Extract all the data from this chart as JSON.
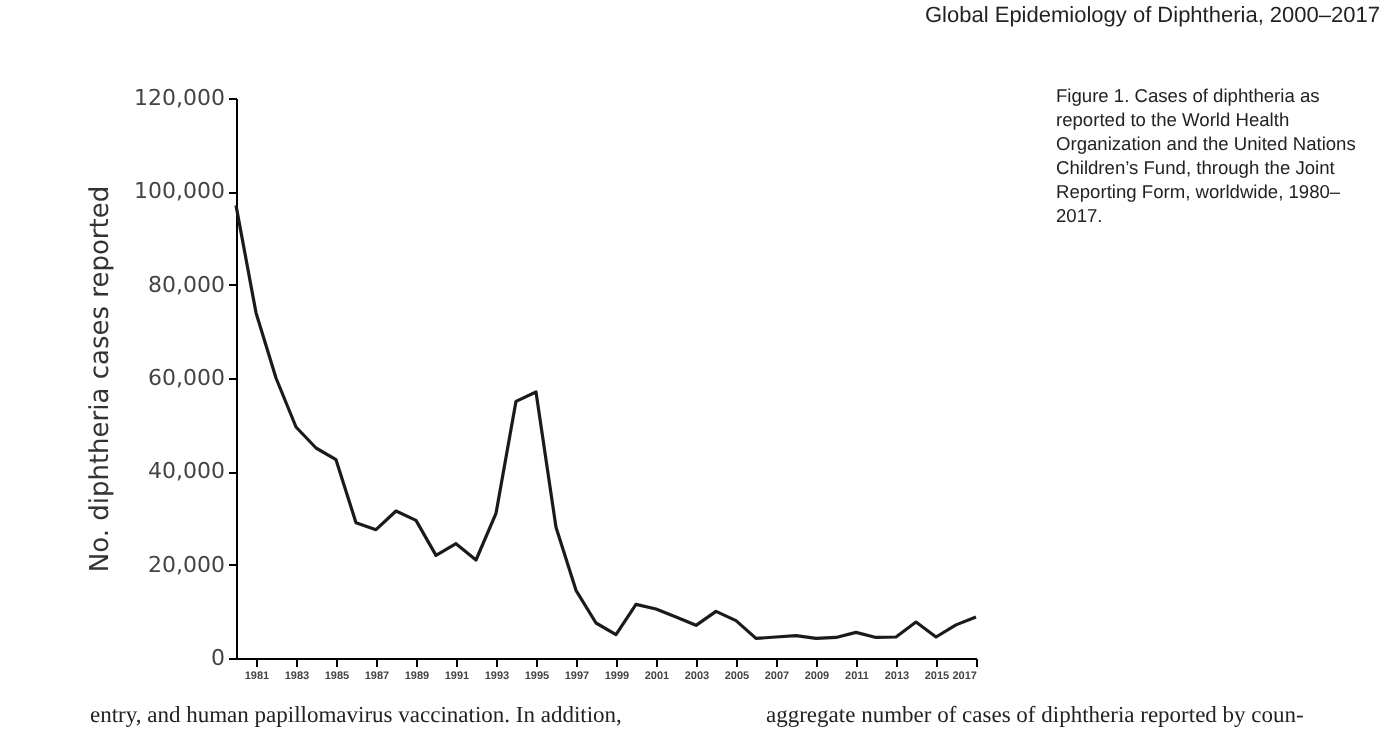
{
  "chart_data": {
    "type": "line",
    "ylabel": "No. diphtheria cases reported",
    "x": [
      1980,
      1981,
      1982,
      1983,
      1984,
      1985,
      1986,
      1987,
      1988,
      1989,
      1990,
      1991,
      1992,
      1993,
      1994,
      1995,
      1996,
      1997,
      1998,
      1999,
      2000,
      2001,
      2002,
      2003,
      2004,
      2005,
      2006,
      2007,
      2008,
      2009,
      2010,
      2011,
      2012,
      2013,
      2014,
      2015,
      2016,
      2017
    ],
    "series": [
      {
        "color": "#1a1a1a",
        "values": [
          97000,
          74000,
          60000,
          49500,
          45000,
          42500,
          29000,
          27500,
          31500,
          29500,
          22000,
          24500,
          21000,
          31000,
          55000,
          57000,
          28000,
          14500,
          7500,
          5000,
          11500,
          10500,
          8800,
          7000,
          10000,
          8000,
          4200,
          4500,
          4800,
          4200,
          4400,
          5500,
          4400,
          4500,
          7700,
          4500,
          7100,
          8800
        ]
      }
    ],
    "xlim": [
      1980,
      2017
    ],
    "xticks": [
      1981,
      1983,
      1985,
      1987,
      1989,
      1991,
      1993,
      1995,
      1997,
      1999,
      2001,
      2003,
      2005,
      2007,
      2009,
      2011,
      2013,
      2015,
      2017
    ],
    "ylim": [
      0,
      120000
    ],
    "yticks": [
      0,
      {
        "value": 20000,
        "label": "20,000"
      },
      {
        "value": 40000,
        "label": "40,000"
      },
      {
        "value": 60000,
        "label": "60,000"
      },
      {
        "value": 80000,
        "label": "80,000"
      },
      {
        "value": 100000,
        "label": "100,000"
      },
      {
        "value": 120000,
        "label": "120,000"
      }
    ],
    "grid": false,
    "marker": "none",
    "line_style": "solid",
    "annotations": [
      "Global Epidemiology of Diphtheria, 2000–2017",
      "Figure 1. Cases of diphtheria as reported to the World Health Organization and the United Nations Children’s Fund, through the Joint Reporting Form, worldwide, 1980–2017.",
      "entry, and human papillomavirus vaccination. In addition,",
      "aggregate number of cases of diphtheria reported by coun-"
    ]
  }
}
